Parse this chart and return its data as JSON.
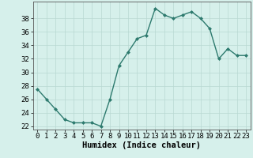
{
  "x": [
    0,
    1,
    2,
    3,
    4,
    5,
    6,
    7,
    8,
    9,
    10,
    11,
    12,
    13,
    14,
    15,
    16,
    17,
    18,
    19,
    20,
    21,
    22,
    23
  ],
  "y": [
    27.5,
    26.0,
    24.5,
    23.0,
    22.5,
    22.5,
    22.5,
    22.0,
    26.0,
    31.0,
    33.0,
    35.0,
    35.5,
    39.5,
    38.5,
    38.0,
    38.5,
    39.0,
    38.0,
    36.5,
    32.0,
    33.5,
    32.5,
    32.5
  ],
  "line_color": "#2d7a6e",
  "marker": "D",
  "marker_size": 2.0,
  "bg_color": "#d6f0eb",
  "grid_color": "#b8d8d2",
  "xlabel": "Humidex (Indice chaleur)",
  "ylim": [
    21.5,
    40.5
  ],
  "xlim": [
    -0.5,
    23.5
  ],
  "yticks": [
    22,
    24,
    26,
    28,
    30,
    32,
    34,
    36,
    38
  ],
  "xticks": [
    0,
    1,
    2,
    3,
    4,
    5,
    6,
    7,
    8,
    9,
    10,
    11,
    12,
    13,
    14,
    15,
    16,
    17,
    18,
    19,
    20,
    21,
    22,
    23
  ],
  "tick_fontsize": 6.5,
  "xlabel_fontsize": 7.5,
  "line_width": 1.0,
  "spine_color": "#555555"
}
